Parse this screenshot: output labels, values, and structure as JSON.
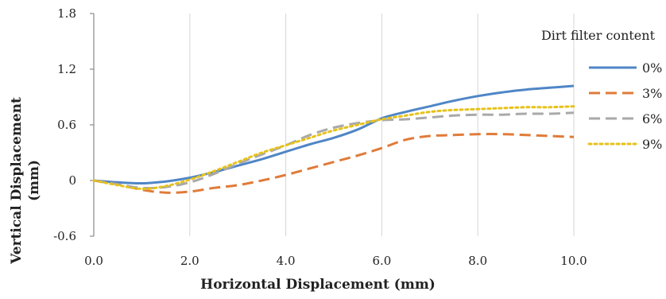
{
  "chart_data": {
    "type": "line",
    "xlabel": "Horizontal Displacement (mm)",
    "ylabel_line1": "Vertical Displacement",
    "ylabel_line2": "(mm)",
    "xlim": [
      0,
      10
    ],
    "ylim": [
      -0.6,
      1.8
    ],
    "x_ticks": [
      "0.0",
      "2.0",
      "4.0",
      "6.0",
      "8.0",
      "10.0"
    ],
    "x_tick_values": [
      0,
      2,
      4,
      6,
      8,
      10
    ],
    "y_ticks": [
      "-0.6",
      "0",
      "0.6",
      "1.2",
      "1.8"
    ],
    "y_tick_values": [
      -0.6,
      0,
      0.6,
      1.2,
      1.8
    ],
    "grid": "vertical",
    "legend_title": "Dirt filter content",
    "legend_position": "right",
    "series": [
      {
        "name": "0%",
        "color": "#4f86c6",
        "style": "solid",
        "points": [
          [
            0,
            0
          ],
          [
            0.5,
            -0.02
          ],
          [
            1,
            -0.03
          ],
          [
            1.5,
            -0.01
          ],
          [
            2,
            0.03
          ],
          [
            2.5,
            0.09
          ],
          [
            3,
            0.16
          ],
          [
            3.5,
            0.23
          ],
          [
            4,
            0.31
          ],
          [
            4.5,
            0.39
          ],
          [
            5,
            0.46
          ],
          [
            5.5,
            0.55
          ],
          [
            6,
            0.67
          ],
          [
            6.5,
            0.74
          ],
          [
            7,
            0.8
          ],
          [
            7.5,
            0.86
          ],
          [
            8,
            0.91
          ],
          [
            8.5,
            0.95
          ],
          [
            9,
            0.98
          ],
          [
            9.5,
            1.0
          ],
          [
            10,
            1.02
          ]
        ]
      },
      {
        "name": "3%",
        "color": "#e07b39",
        "style": "dashed",
        "points": [
          [
            0,
            0
          ],
          [
            0.5,
            -0.04
          ],
          [
            1,
            -0.1
          ],
          [
            1.5,
            -0.13
          ],
          [
            2,
            -0.12
          ],
          [
            2.5,
            -0.08
          ],
          [
            3,
            -0.05
          ],
          [
            3.5,
            0.0
          ],
          [
            4,
            0.06
          ],
          [
            4.5,
            0.13
          ],
          [
            5,
            0.2
          ],
          [
            5.5,
            0.27
          ],
          [
            6,
            0.35
          ],
          [
            6.5,
            0.44
          ],
          [
            7,
            0.48
          ],
          [
            7.5,
            0.49
          ],
          [
            8,
            0.5
          ],
          [
            8.5,
            0.5
          ],
          [
            9,
            0.49
          ],
          [
            9.5,
            0.48
          ],
          [
            10,
            0.47
          ]
        ]
      },
      {
        "name": "6%",
        "color": "#a9a9a9",
        "style": "dashed",
        "points": [
          [
            0,
            0
          ],
          [
            0.5,
            -0.04
          ],
          [
            1,
            -0.08
          ],
          [
            1.5,
            -0.07
          ],
          [
            2,
            -0.02
          ],
          [
            2.5,
            0.07
          ],
          [
            3,
            0.18
          ],
          [
            3.5,
            0.28
          ],
          [
            4,
            0.38
          ],
          [
            4.5,
            0.49
          ],
          [
            5,
            0.57
          ],
          [
            5.5,
            0.62
          ],
          [
            6,
            0.65
          ],
          [
            6.5,
            0.66
          ],
          [
            7,
            0.68
          ],
          [
            7.5,
            0.7
          ],
          [
            8,
            0.71
          ],
          [
            8.5,
            0.71
          ],
          [
            9,
            0.72
          ],
          [
            9.5,
            0.72
          ],
          [
            10,
            0.73
          ]
        ]
      },
      {
        "name": "9%",
        "color": "#e6c21a",
        "style": "dotted",
        "points": [
          [
            0,
            0
          ],
          [
            0.5,
            -0.05
          ],
          [
            1,
            -0.09
          ],
          [
            1.5,
            -0.06
          ],
          [
            2,
            0.01
          ],
          [
            2.5,
            0.1
          ],
          [
            3,
            0.2
          ],
          [
            3.5,
            0.3
          ],
          [
            4,
            0.38
          ],
          [
            4.5,
            0.46
          ],
          [
            5,
            0.54
          ],
          [
            5.5,
            0.6
          ],
          [
            6,
            0.66
          ],
          [
            6.5,
            0.7
          ],
          [
            7,
            0.74
          ],
          [
            7.5,
            0.76
          ],
          [
            8,
            0.77
          ],
          [
            8.5,
            0.78
          ],
          [
            9,
            0.79
          ],
          [
            9.5,
            0.79
          ],
          [
            10,
            0.8
          ]
        ]
      }
    ]
  }
}
